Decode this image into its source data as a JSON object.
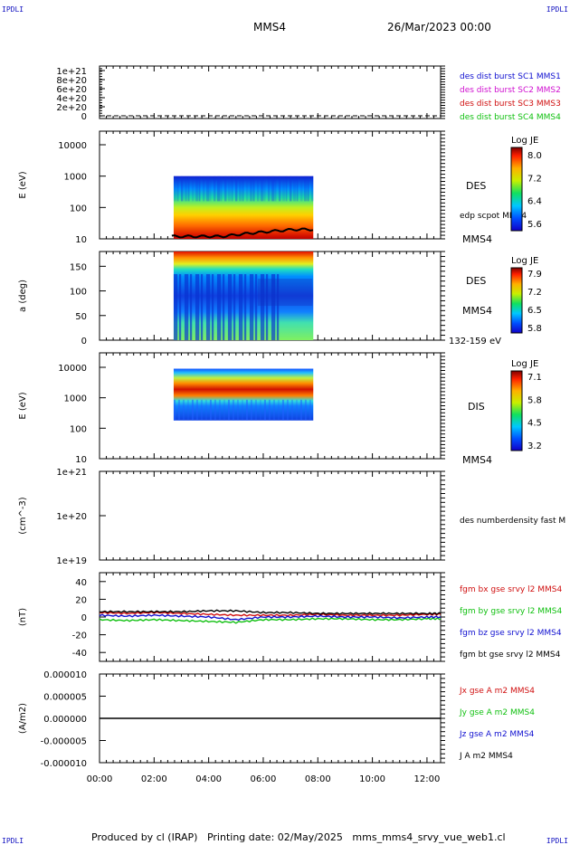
{
  "header": {
    "corner_tl": "IPDLI",
    "corner_tr": "IPDLI",
    "corner_bl": "IPDLI",
    "corner_br": "IPDLI",
    "spacecraft": "MMS4",
    "date": "26/Mar/2023 00:00"
  },
  "footer": {
    "text": "Produced by cl (IRAP)   Printing date: 02/May/2025   mms_mms4_srvy_vue_web1.cl"
  },
  "colors": {
    "black": "#000000",
    "red": "#e00000",
    "green": "#00c000",
    "blue": "#0000e0",
    "magenta": "#e000e0",
    "legend_blue": "#1010d0",
    "legend_magenta": "#d010d0",
    "legend_red": "#d01010",
    "legend_green": "#10c010"
  },
  "chart_data": [
    {
      "type": "line",
      "panel": "dist-burst",
      "ylabel": "",
      "ylim": [
        0,
        1.1e+21
      ],
      "yticks": [
        "1e+21",
        "8e+20",
        "6e+20",
        "4e+20",
        "2e+20",
        "0"
      ],
      "series": [
        {
          "name": "des dist burst SC1 MMS1",
          "color": "#1010d0"
        },
        {
          "name": "des dist burst SC2 MMS2",
          "color": "#d010d0"
        },
        {
          "name": "des dist burst SC3 MMS3",
          "color": "#d01010"
        },
        {
          "name": "des dist burst SC4 MMS4",
          "color": "#10c010"
        }
      ],
      "values": [
        0,
        0
      ]
    },
    {
      "type": "heatmap",
      "panel": "des-energy",
      "ylabel": "E (eV)",
      "yscale": "log",
      "ylim": [
        10,
        10000
      ],
      "yticks": [
        "10000",
        "1000",
        "100",
        "10"
      ],
      "right_labels": [
        "DES",
        "edp scpot MMS4"
      ],
      "bottom_right": "MMS4",
      "colorbar": {
        "title": "Log JE",
        "ticks": [
          "8.0",
          "7.2",
          "6.4",
          "5.6"
        ]
      },
      "time_range": [
        "02:43",
        "07:50"
      ],
      "scpot_line": {
        "name": "edp scpot MMS4"
      }
    },
    {
      "type": "heatmap",
      "panel": "des-pitch",
      "ylabel": "a (deg)",
      "ylim": [
        0,
        180
      ],
      "yticks": [
        "150",
        "100",
        "50",
        "0"
      ],
      "right_labels": [
        "DES",
        "MMS4"
      ],
      "bottom_right": "132-159 eV",
      "colorbar": {
        "title": "Log JE",
        "ticks": [
          "7.9",
          "7.2",
          "6.5",
          "5.8"
        ]
      },
      "time_range": [
        "02:43",
        "07:50"
      ]
    },
    {
      "type": "heatmap",
      "panel": "dis-energy",
      "ylabel": "E (eV)",
      "yscale": "log",
      "ylim": [
        10,
        10000
      ],
      "yticks": [
        "10000",
        "1000",
        "100",
        "10"
      ],
      "right_labels": [
        "DIS"
      ],
      "bottom_right": "MMS4",
      "colorbar": {
        "title": "Log JE",
        "ticks": [
          "7.1",
          "5.8",
          "4.5",
          "3.2"
        ]
      },
      "time_range": [
        "02:43",
        "07:50"
      ]
    },
    {
      "type": "line",
      "panel": "density",
      "ylabel": "(cm^-3)",
      "yscale": "log",
      "ylim": [
        1e+19,
        1e+21
      ],
      "yticks": [
        "1e+21",
        "1e+20",
        "1e+19"
      ],
      "series": [
        {
          "name": "des numberdensity fast M",
          "color": "#000000"
        }
      ]
    },
    {
      "type": "line",
      "panel": "fgm",
      "ylabel": "(nT)",
      "ylim": [
        -50,
        50
      ],
      "yticks": [
        "40",
        "20",
        "0",
        "-20",
        "-40"
      ],
      "x": [
        "00:00",
        "01:00",
        "02:00",
        "03:00",
        "04:00",
        "05:00",
        "06:00",
        "07:00",
        "08:00",
        "09:00",
        "10:00",
        "11:00",
        "12:00",
        "12:30"
      ],
      "series": [
        {
          "name": "fgm bx gse srvy l2 MMS4",
          "color": "#d01010",
          "values": [
            5,
            4,
            5,
            4,
            3,
            2,
            2,
            2,
            3,
            2,
            2,
            2,
            3,
            3
          ]
        },
        {
          "name": "fgm by gse srvy l2 MMS4",
          "color": "#10c010",
          "values": [
            -3,
            -4,
            -3,
            -4,
            -5,
            -6,
            -3,
            -3,
            -2,
            -2,
            -3,
            -3,
            -2,
            -2
          ]
        },
        {
          "name": "fgm bz gse srvy l2 MMS4",
          "color": "#1010d0",
          "values": [
            2,
            1,
            2,
            1,
            0,
            -3,
            0,
            0,
            1,
            0,
            0,
            -1,
            0,
            0
          ]
        },
        {
          "name": "fgm bt gse srvy l2 MMS4",
          "color": "#000000",
          "values": [
            6,
            6,
            6,
            6,
            7,
            7,
            5,
            5,
            4,
            4,
            4,
            4,
            4,
            4
          ]
        }
      ]
    },
    {
      "type": "line",
      "panel": "current",
      "ylabel": "(A/m2)",
      "ylim": [
        -1e-05,
        1e-05
      ],
      "yticks": [
        "0.000010",
        "0.000005",
        "0.000000",
        "-0.000005",
        "-0.000010"
      ],
      "xticks": [
        "00:00",
        "02:00",
        "04:00",
        "06:00",
        "08:00",
        "10:00",
        "12:00"
      ],
      "series": [
        {
          "name": "Jx gse A m2 MMS4",
          "color": "#d01010"
        },
        {
          "name": "Jy gse A m2 MMS4",
          "color": "#10c010"
        },
        {
          "name": "Jz gse A m2 MMS4",
          "color": "#1010d0"
        },
        {
          "name": "J A m2 MMS4",
          "color": "#000000"
        }
      ],
      "values": [
        0,
        0
      ]
    }
  ]
}
